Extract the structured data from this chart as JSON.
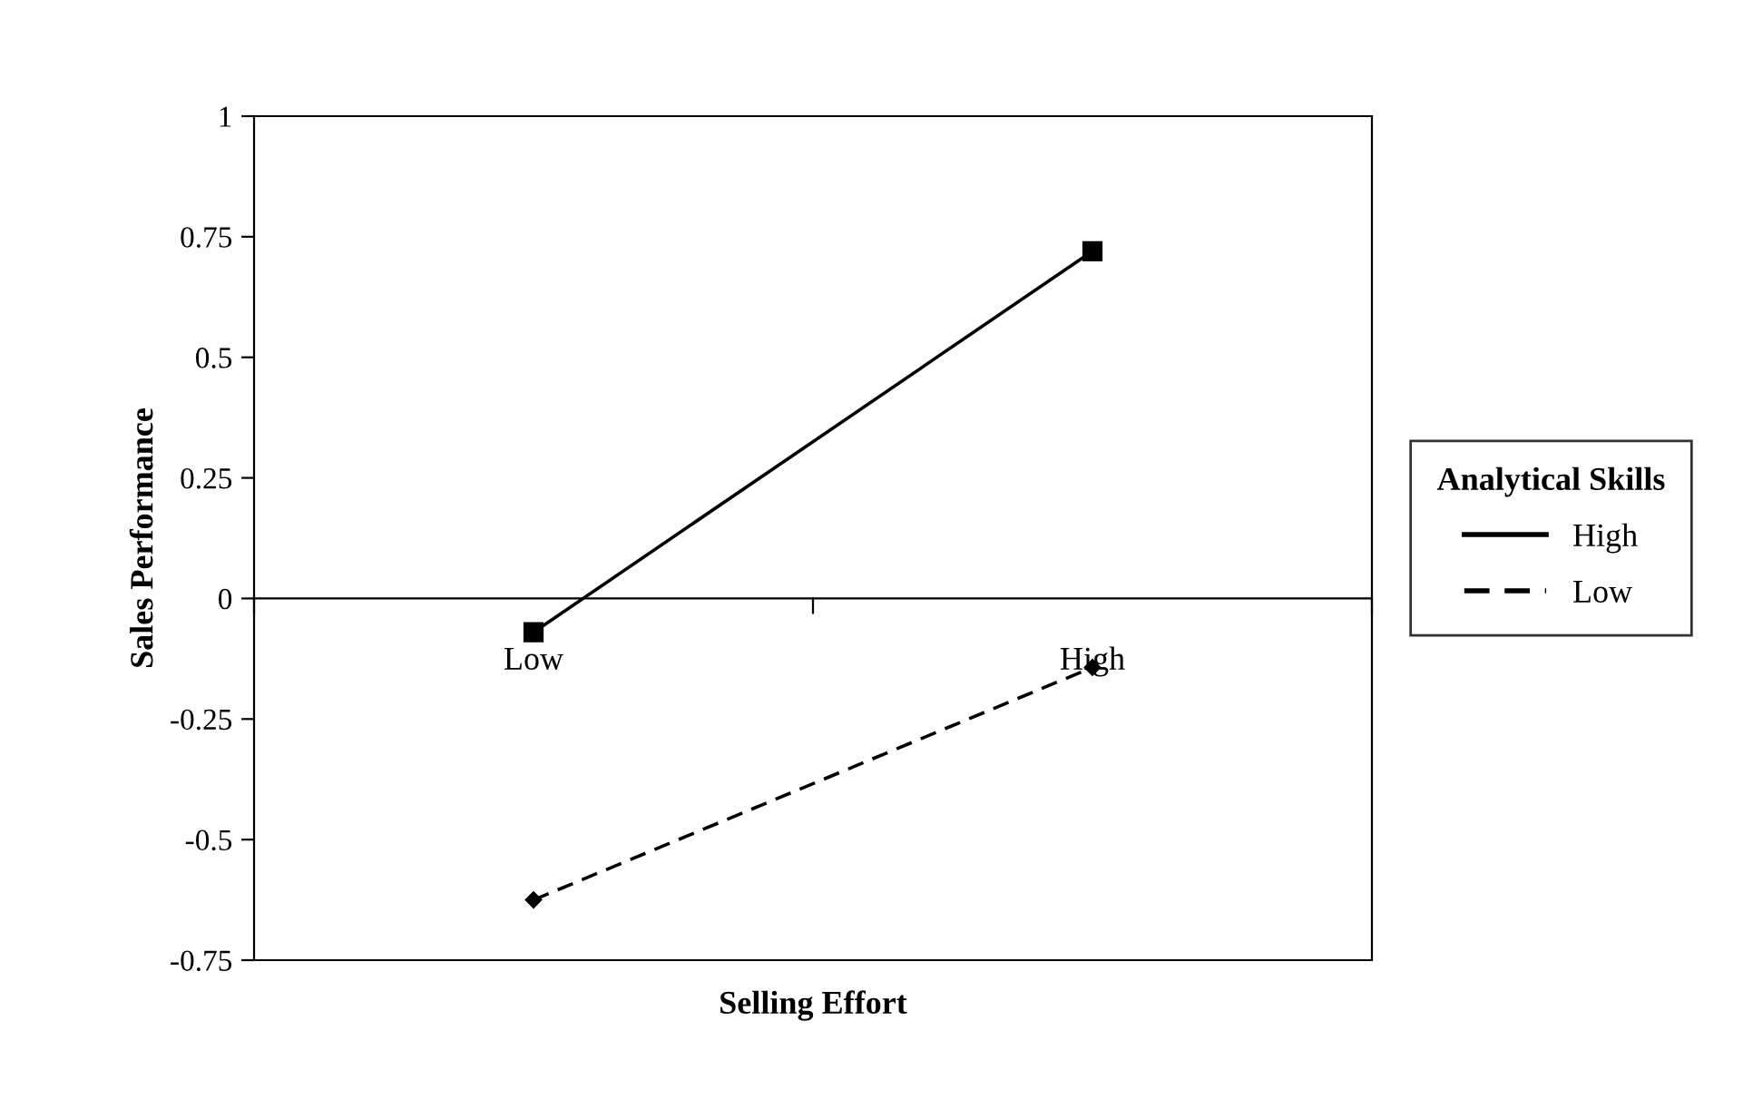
{
  "chart_data": {
    "type": "line",
    "xlabel": "Selling Effort",
    "ylabel": "Sales Performance",
    "legend_title": "Analytical Skills",
    "categories": [
      "Low",
      "High"
    ],
    "series": [
      {
        "name": "High",
        "color": "#000000",
        "values": [
          -0.07,
          0.72
        ],
        "marker": "square",
        "line_style": "solid"
      },
      {
        "name": "Low",
        "color": "#000000",
        "values": [
          -0.625,
          -0.143
        ],
        "marker": "diamond",
        "line_style": "dashed"
      }
    ],
    "ylim": [
      -0.75,
      1
    ],
    "yticks": [
      -0.75,
      -0.5,
      -0.25,
      0,
      0.25,
      0.5,
      0.75,
      1
    ],
    "grid": false,
    "legend": "right"
  }
}
